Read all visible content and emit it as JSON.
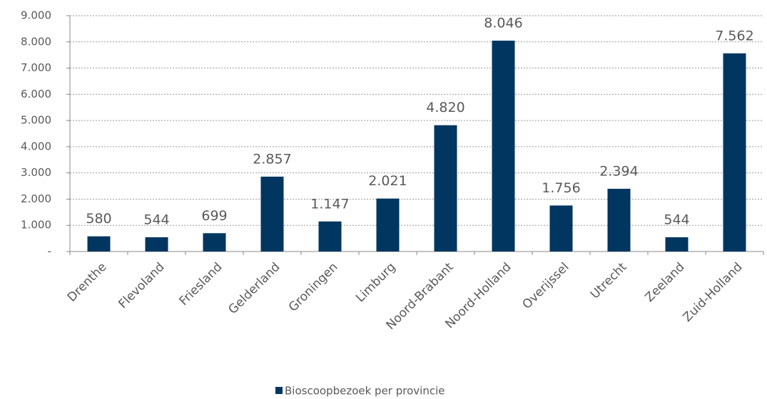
{
  "chart_data": {
    "type": "bar",
    "categories": [
      "Drenthe",
      "Flevoland",
      "Friesland",
      "Gelderland",
      "Groningen",
      "Limburg",
      "Noord-Brabant",
      "Noord-Holland",
      "Overijssel",
      "Utrecht",
      "Zeeland",
      "Zuid-Holland"
    ],
    "series": [
      {
        "name": "Bioscoopbezoek per provincie",
        "color": "#003660",
        "values": [
          580,
          544,
          699,
          2857,
          1147,
          2021,
          4820,
          8046,
          1756,
          2394,
          544,
          7562
        ],
        "value_labels": [
          "580",
          "544",
          "699",
          "2.857",
          "1.147",
          "2.021",
          "4.820",
          "8.046",
          "1.756",
          "2.394",
          "544",
          "7.562"
        ]
      }
    ],
    "ylim": [
      0,
      9000
    ],
    "yticks": [
      {
        "value": 0,
        "label": "-"
      },
      {
        "value": 1000,
        "label": "1.000"
      },
      {
        "value": 2000,
        "label": "2.000"
      },
      {
        "value": 3000,
        "label": "3.000"
      },
      {
        "value": 4000,
        "label": "4.000"
      },
      {
        "value": 5000,
        "label": "5.000"
      },
      {
        "value": 6000,
        "label": "6.000"
      },
      {
        "value": 7000,
        "label": "7.000"
      },
      {
        "value": 8000,
        "label": "8.000"
      },
      {
        "value": 9000,
        "label": "9.000"
      }
    ],
    "grid": true,
    "legend": "bottom"
  }
}
